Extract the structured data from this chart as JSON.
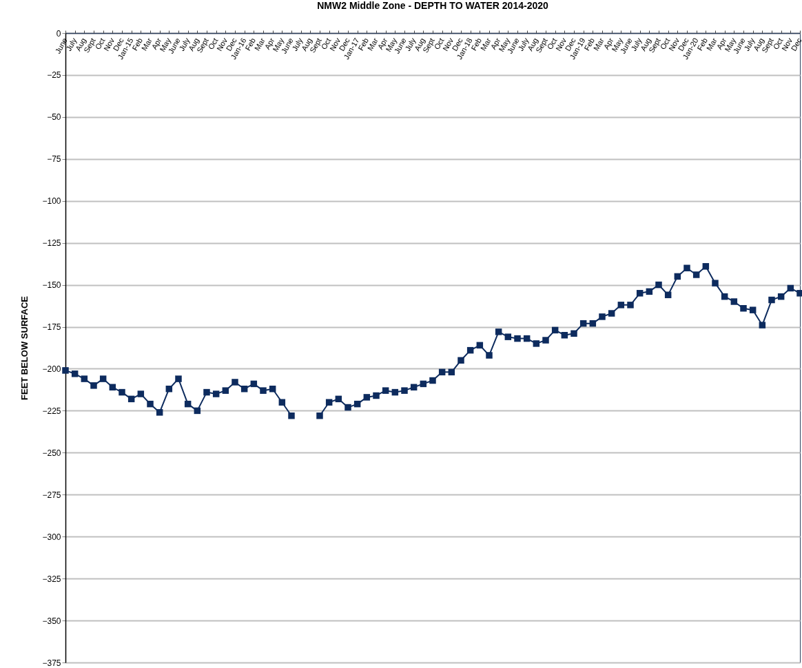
{
  "chart_data": {
    "type": "line",
    "title": "NMW2 Middle Zone - DEPTH TO WATER 2014-2020",
    "ylabel": "FEET BELOW SURFACE",
    "categories": [
      "June",
      "July",
      "Aug",
      "Sept",
      "Oct",
      "Nov",
      "Dec",
      "Jan-15",
      "Feb",
      "Mar",
      "Apr",
      "May",
      "June",
      "July",
      "Aug",
      "Sept",
      "Oct",
      "Nov",
      "Dec",
      "Jan-16",
      "Feb",
      "Mar",
      "Apr",
      "May",
      "June",
      "July",
      "Aug",
      "Sept",
      "Oct",
      "Nov",
      "Dec",
      "Jan-17",
      "Feb",
      "Mar",
      "Apr",
      "May",
      "June",
      "July",
      "Aug",
      "Sept",
      "Oct",
      "Nov",
      "Dec",
      "Jan-18",
      "Feb",
      "Mar",
      "Apr",
      "May",
      "June",
      "July",
      "Aug",
      "Sept",
      "Oct",
      "Nov",
      "Dec",
      "Jan-19",
      "Feb",
      "Mar",
      "Apr",
      "May",
      "June",
      "July",
      "Aug",
      "Sept",
      "Oct",
      "Nov",
      "Dec",
      "Jan-20",
      "Feb",
      "Mar",
      "Apr",
      "May",
      "June",
      "July",
      "Aug",
      "Sept",
      "Oct",
      "Nov",
      "Dec"
    ],
    "series": [
      {
        "color": "#0d2b5e",
        "values": [
          -201,
          -203,
          -206,
          -210,
          -206,
          -211,
          -214,
          -218,
          -215,
          -221,
          -226,
          -212,
          -206,
          -221,
          -225,
          -214,
          -215,
          -213,
          -208,
          -212,
          -209,
          -213,
          -212,
          -220,
          -228,
          null,
          null,
          -228,
          -220,
          -218,
          -223,
          -221,
          -217,
          -216,
          -213,
          -214,
          -213,
          -211,
          -209,
          -207,
          -202,
          -202,
          -195,
          -189,
          -186,
          -192,
          -178,
          -181,
          -182,
          -182,
          -185,
          -183,
          -177,
          -180,
          -179,
          -173,
          -173,
          -169,
          -167,
          -162,
          -162,
          -155,
          -154,
          -150,
          -156,
          -145,
          -140,
          -144,
          -139,
          -149,
          -157,
          -160,
          -164,
          -165,
          -174,
          -159,
          -157,
          -152,
          -155
        ]
      }
    ],
    "ylim": [
      -375,
      0
    ],
    "yticks": [
      -375,
      -350,
      -325,
      -300,
      -275,
      -250,
      -225,
      -200,
      -175,
      -150,
      -125,
      -100,
      -75,
      -50,
      -25,
      0
    ],
    "grid": "y",
    "legend": false,
    "marker": "square",
    "line_style": "solid"
  }
}
